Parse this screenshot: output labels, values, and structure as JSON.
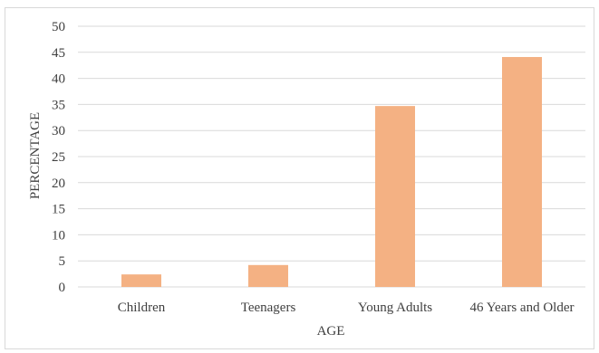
{
  "chart_data": {
    "type": "bar",
    "title": "",
    "xlabel": "AGE",
    "ylabel": "PERCENTAGE",
    "categories": [
      "Children",
      "Teenagers",
      "Young Adults",
      "46 Years and Older"
    ],
    "values": [
      2.4,
      4.2,
      34.7,
      44.1
    ],
    "ylim": [
      0,
      50
    ],
    "yticks": [
      0,
      5,
      10,
      15,
      20,
      25,
      30,
      35,
      40,
      45,
      50
    ],
    "grid": true,
    "legend": "none",
    "bar_color": "#F4B183",
    "grid_color": "#d9d9d9"
  }
}
